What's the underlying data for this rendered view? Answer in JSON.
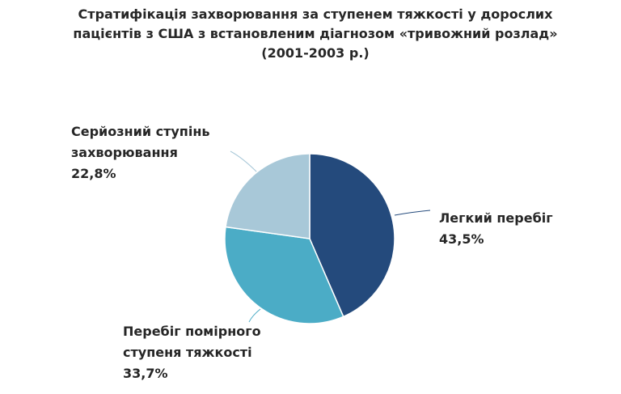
{
  "chart_data": {
    "type": "pie",
    "title": "Стратифікація захворювання за ступенем тяжкості у дорослих пацієнтів з США з встановленим діагнозом «тривожний розлад» (2001-2003 р.)",
    "categories": [
      "Легкий перебіг",
      "Перебіг помірного ступеня тяжкості",
      "Серйозний ступінь захворювання"
    ],
    "values": [
      43.5,
      33.7,
      22.8
    ],
    "value_labels": [
      "43,5%",
      "33,7%",
      "22,8%"
    ],
    "colors": [
      "#244a7c",
      "#4bacc6",
      "#a8c8d8"
    ]
  }
}
